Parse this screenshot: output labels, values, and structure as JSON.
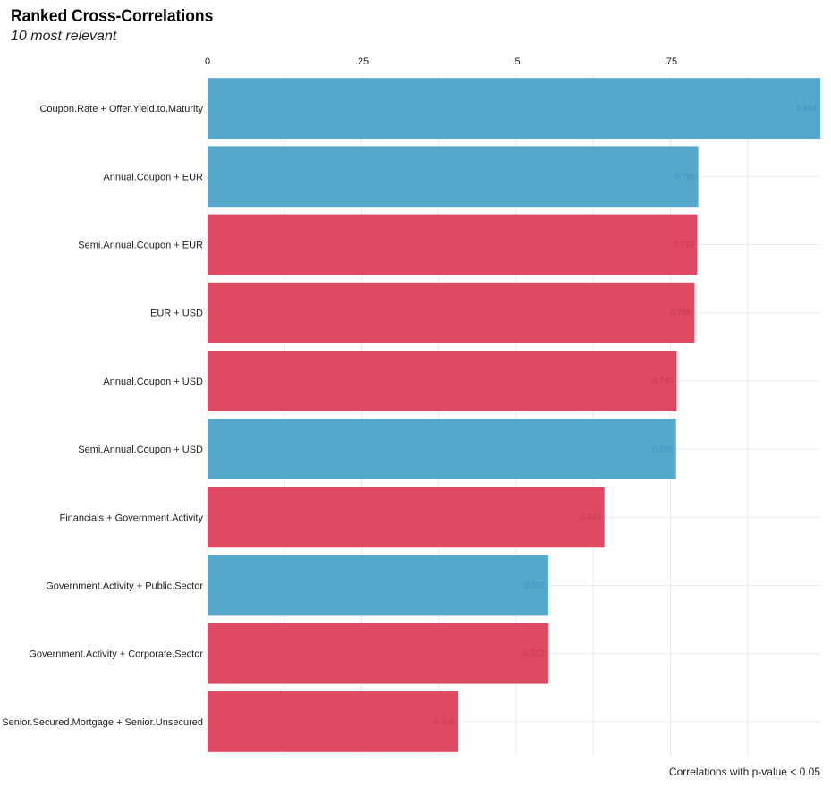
{
  "chart_data": {
    "type": "bar",
    "orientation": "horizontal",
    "title": "Ranked Cross-Correlations",
    "subtitle": "10 most relevant",
    "caption": "Correlations with p-value < 0.05",
    "xlim": [
      0,
      1
    ],
    "x_ticks": [
      {
        "value": 0,
        "label": "0"
      },
      {
        "value": 0.25,
        "label": ".25"
      },
      {
        "value": 0.5,
        "label": ".5"
      },
      {
        "value": 0.75,
        "label": ".75"
      }
    ],
    "grid": true,
    "categories": [
      "Coupon.Rate + Offer.Yield.to.Maturity",
      "Annual.Coupon + EUR",
      "Semi.Annual.Coupon + EUR",
      "EUR + USD",
      "Annual.Coupon + USD",
      "Semi.Annual.Coupon + USD",
      "Financials + Government.Activity",
      "Government.Activity + Public.Sector",
      "Government.Activity + Corporate.Sector",
      "Senior.Secured.Mortgage + Senior.Unsecured"
    ],
    "values": [
      0.994,
      0.795,
      0.793,
      0.789,
      0.76,
      0.759,
      0.643,
      0.552,
      0.552,
      0.406
    ],
    "signs": [
      "positive",
      "positive",
      "negative",
      "negative",
      "negative",
      "positive",
      "negative",
      "positive",
      "negative",
      "negative"
    ],
    "value_labels": [
      "0.994",
      "0.795",
      "-0.793",
      "-0.789",
      "-0.760",
      "0.759",
      "-0.643",
      "0.552",
      "-0.552",
      "-0.406"
    ],
    "colors": {
      "positive": "#53a8cc",
      "negative": "#df4a62",
      "positive_label": "#3f93b8",
      "negative_label": "#c53a50",
      "grid": "#ebebeb"
    }
  }
}
